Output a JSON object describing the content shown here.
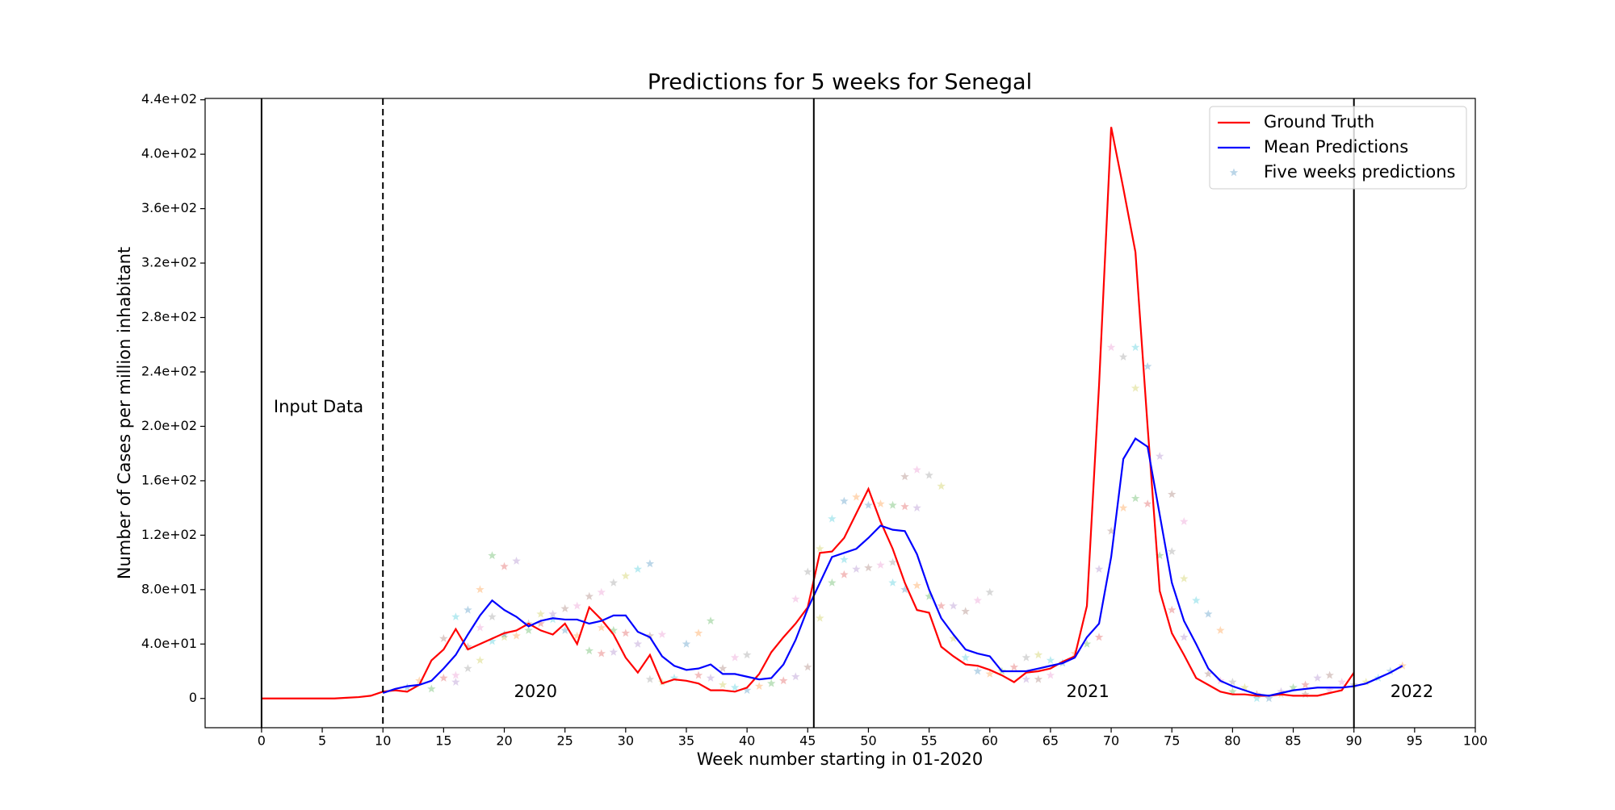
{
  "chart_data": {
    "type": "line",
    "title": "Predictions for 5 weeks for Senegal",
    "x_label": "Week number starting in 01-2020",
    "y_label": "Number of Cases per million inhabitant",
    "xlim": [
      -4.65,
      100
    ],
    "ylim": [
      -21.5,
      441
    ],
    "xticks": [
      0,
      5,
      10,
      15,
      20,
      25,
      30,
      35,
      40,
      45,
      50,
      55,
      60,
      65,
      70,
      75,
      80,
      85,
      90,
      95,
      100
    ],
    "yticks": [
      0,
      {
        "value": 40,
        "label": "4.0e+01"
      },
      {
        "value": 80,
        "label": "8.0e+01"
      },
      {
        "value": 120,
        "label": "1.2e+02"
      },
      {
        "value": 160,
        "label": "1.6e+02"
      },
      {
        "value": 200,
        "label": "2.0e+02"
      },
      {
        "value": 240,
        "label": "2.4e+02"
      },
      {
        "value": 280,
        "label": "2.8e+02"
      },
      {
        "value": 320,
        "label": "3.2e+02"
      },
      {
        "value": 360,
        "label": "3.6e+02"
      },
      {
        "value": 400,
        "label": "4.0e+02"
      },
      {
        "value": 440,
        "label": "4.4e+02"
      }
    ],
    "grid": false,
    "legend": "upper right",
    "vlines": [
      {
        "x": 0,
        "style": "solid"
      },
      {
        "x": 10,
        "style": "dashed"
      },
      {
        "x": 45.5,
        "style": "solid"
      },
      {
        "x": 90,
        "style": "solid"
      }
    ],
    "annotations": [
      {
        "text": "Input Data",
        "x": 1,
        "y": 214
      },
      {
        "text": "2020",
        "x": 20.8,
        "y": 4.6
      },
      {
        "text": "2021",
        "x": 66.3,
        "y": 4.6
      },
      {
        "text": "2022",
        "x": 93,
        "y": 4.6
      }
    ],
    "series": [
      {
        "name": "Ground Truth",
        "type": "line",
        "color": "#ff0000",
        "x": [
          0,
          1,
          2,
          3,
          4,
          5,
          6,
          7,
          8,
          9,
          10,
          11,
          12,
          13,
          14,
          15,
          16,
          17,
          18,
          19,
          20,
          21,
          22,
          23,
          24,
          25,
          26,
          27,
          28,
          29,
          30,
          31,
          32,
          33,
          34,
          35,
          36,
          37,
          38,
          39,
          40,
          41,
          42,
          43,
          44,
          45,
          46,
          47,
          48,
          49,
          50,
          51,
          52,
          53,
          54,
          55,
          56,
          57,
          58,
          59,
          60,
          61,
          62,
          63,
          64,
          65,
          66,
          67,
          68,
          69,
          70,
          71,
          72,
          73,
          74,
          75,
          76,
          77,
          78,
          79,
          80,
          81,
          82,
          83,
          84,
          85,
          86,
          87,
          88,
          89,
          90
        ],
        "values": [
          0,
          0,
          0,
          0,
          0,
          0,
          0,
          0.5,
          1,
          2,
          5,
          6,
          5,
          10,
          28,
          36,
          51,
          36,
          40,
          44,
          48,
          50,
          55,
          50,
          47,
          55,
          40,
          67,
          58,
          47,
          30,
          19,
          32,
          11,
          14,
          13,
          11,
          6,
          6,
          5,
          8,
          18,
          34,
          45,
          55,
          67,
          107,
          108,
          118,
          136,
          154,
          130,
          110,
          85,
          65,
          63,
          38,
          31,
          25,
          24,
          21,
          17,
          12,
          19,
          20,
          22,
          27,
          31,
          68,
          230,
          420,
          375,
          328,
          200,
          79,
          48,
          32,
          15,
          10,
          5,
          3,
          3,
          2,
          2,
          3,
          2,
          2,
          2,
          4,
          6,
          19
        ]
      },
      {
        "name": "Mean Predictions",
        "type": "line",
        "color": "#0000ff",
        "x": [
          10,
          11,
          12,
          13,
          14,
          15,
          16,
          17,
          18,
          19,
          20,
          21,
          22,
          23,
          24,
          25,
          26,
          27,
          28,
          29,
          30,
          31,
          32,
          33,
          34,
          35,
          36,
          37,
          38,
          39,
          40,
          41,
          42,
          43,
          44,
          45,
          46,
          47,
          48,
          49,
          50,
          51,
          52,
          53,
          54,
          55,
          56,
          57,
          58,
          59,
          60,
          61,
          62,
          63,
          64,
          65,
          66,
          67,
          68,
          69,
          70,
          71,
          72,
          73,
          74,
          75,
          76,
          77,
          78,
          79,
          80,
          81,
          82,
          83,
          84,
          85,
          86,
          87,
          88,
          89,
          90,
          91,
          92,
          93,
          94
        ],
        "values": [
          4,
          7,
          9,
          10,
          13,
          22,
          32,
          47,
          61,
          72,
          65,
          60,
          53,
          57,
          59,
          58,
          58,
          55,
          57,
          61,
          61,
          49,
          45,
          31,
          24,
          21,
          22,
          25,
          18,
          18,
          16,
          14,
          15,
          25,
          43,
          66,
          85,
          104,
          107,
          110,
          118,
          127,
          124,
          123,
          106,
          80,
          59,
          47,
          36,
          33,
          31,
          20,
          20,
          20,
          22,
          24,
          26,
          30,
          45,
          55,
          104,
          176,
          191,
          185,
          135,
          85,
          57,
          40,
          22,
          13,
          9,
          6,
          3,
          2,
          4,
          6,
          7,
          8,
          8,
          8,
          9,
          11,
          15,
          19,
          24
        ]
      },
      {
        "name": "Five weeks predictions",
        "type": "scatter",
        "color": "#1f77b4",
        "colors": [
          "#1f77b4",
          "#ff7f0e",
          "#2ca02c",
          "#d62728",
          "#9467bd",
          "#8c564b",
          "#e377c2",
          "#7f7f7f",
          "#bcbd22",
          "#17becf"
        ],
        "x": [
          12,
          13,
          14,
          15,
          16,
          17,
          18,
          19,
          20,
          16,
          17,
          18,
          19,
          20,
          21,
          15,
          16,
          17,
          18,
          19,
          20,
          21,
          22,
          23,
          24,
          25,
          26,
          22,
          23,
          24,
          25,
          26,
          27,
          28,
          29,
          27,
          28,
          29,
          30,
          31,
          32,
          28,
          29,
          30,
          31,
          32,
          33,
          32,
          33,
          34,
          35,
          36,
          37,
          36,
          37,
          38,
          39,
          40,
          38,
          39,
          40,
          41,
          42,
          43,
          44,
          45,
          44,
          45,
          46,
          47,
          48,
          49,
          47,
          48,
          49,
          50,
          51,
          52,
          46,
          48,
          50,
          51,
          52,
          53,
          54,
          53,
          54,
          55,
          56,
          52,
          53,
          54,
          55,
          56,
          57,
          58,
          59,
          60,
          57,
          58,
          59,
          60,
          61,
          62,
          63,
          64,
          65,
          63,
          64,
          65,
          66,
          67,
          68,
          69,
          69,
          70,
          70,
          71,
          72,
          72,
          73,
          71,
          72,
          73,
          74,
          75,
          76,
          75,
          76,
          77,
          78,
          79,
          74,
          75,
          76,
          78,
          79,
          80,
          81,
          82,
          83,
          84,
          85,
          86,
          87,
          88,
          89,
          90,
          91,
          92,
          93,
          94,
          80,
          82,
          84,
          86,
          88
        ],
        "values": [
          8,
          13,
          7,
          15,
          12,
          38,
          52,
          60,
          45,
          60,
          65,
          80,
          105,
          97,
          101,
          44,
          17,
          22,
          28,
          42,
          47,
          46,
          50,
          55,
          62,
          66,
          68,
          55,
          62,
          58,
          50,
          46,
          35,
          33,
          34,
          75,
          78,
          85,
          90,
          95,
          99,
          52,
          50,
          48,
          40,
          46,
          47,
          14,
          12,
          15,
          40,
          48,
          57,
          17,
          15,
          22,
          30,
          32,
          10,
          8,
          6,
          9,
          11,
          13,
          16,
          23,
          73,
          93,
          110,
          132,
          145,
          148,
          85,
          91,
          95,
          96,
          98,
          100,
          59,
          102,
          142,
          143,
          142,
          141,
          140,
          163,
          168,
          164,
          156,
          85,
          80,
          83,
          75,
          68,
          68,
          64,
          72,
          78,
          44,
          30,
          20,
          18,
          20,
          23,
          14,
          14,
          17,
          30,
          32,
          28,
          26,
          33,
          40,
          45,
          95,
          123,
          258,
          251,
          228,
          258,
          244,
          140,
          147,
          143,
          178,
          150,
          130,
          108,
          88,
          72,
          62,
          50,
          105,
          65,
          45,
          18,
          13,
          12,
          8,
          0,
          0,
          3,
          8,
          10,
          15,
          17,
          12,
          10,
          12,
          15,
          20,
          24,
          5,
          3,
          5,
          3,
          6
        ]
      }
    ]
  }
}
